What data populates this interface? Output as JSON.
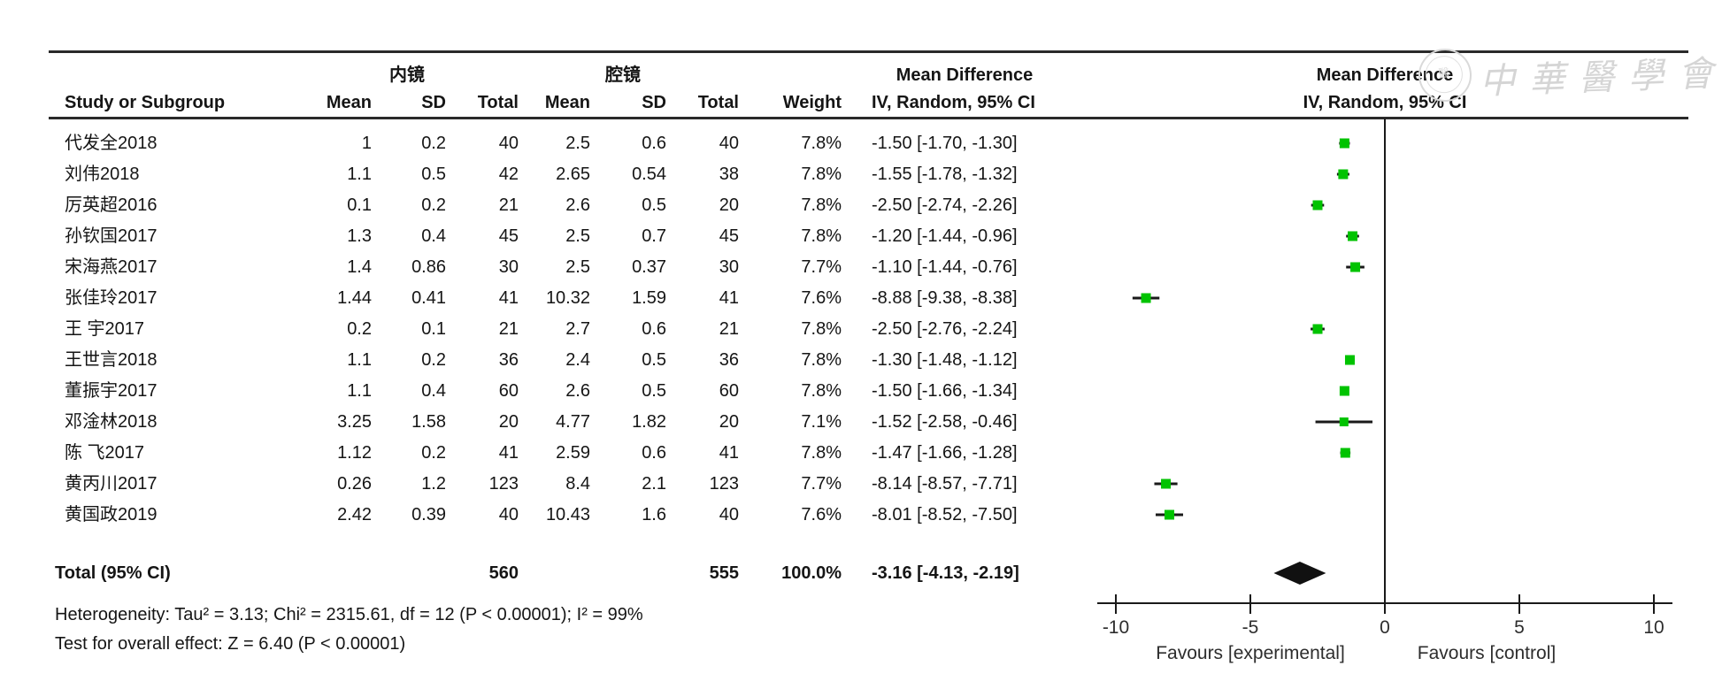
{
  "watermark": {
    "text": "中華醫學會",
    "seal_text": "醫"
  },
  "table": {
    "group1_label": "内镜",
    "group2_label": "腔镜",
    "columns": {
      "study": "Study or Subgroup",
      "mean": "Mean",
      "sd": "SD",
      "total": "Total",
      "weight": "Weight"
    },
    "effect_text_header": {
      "line1": "Mean Difference",
      "line2": "IV, Random, 95% CI"
    },
    "effect_plot_header": {
      "line1": "Mean Difference",
      "line2": "IV, Random, 95% CI"
    },
    "studies": [
      {
        "name": "代发全2018",
        "mean1": "1",
        "sd1": "0.2",
        "total1": "40",
        "mean2": "2.5",
        "sd2": "0.6",
        "total2": "40",
        "weight": "7.8%",
        "ci_text": "-1.50 [-1.70, -1.30]",
        "md": -1.5,
        "lo": -1.7,
        "hi": -1.3,
        "weight_val": 7.8
      },
      {
        "name": "刘伟2018",
        "mean1": "1.1",
        "sd1": "0.5",
        "total1": "42",
        "mean2": "2.65",
        "sd2": "0.54",
        "total2": "38",
        "weight": "7.8%",
        "ci_text": "-1.55 [-1.78, -1.32]",
        "md": -1.55,
        "lo": -1.78,
        "hi": -1.32,
        "weight_val": 7.8
      },
      {
        "name": "厉英超2016",
        "mean1": "0.1",
        "sd1": "0.2",
        "total1": "21",
        "mean2": "2.6",
        "sd2": "0.5",
        "total2": "20",
        "weight": "7.8%",
        "ci_text": "-2.50 [-2.74, -2.26]",
        "md": -2.5,
        "lo": -2.74,
        "hi": -2.26,
        "weight_val": 7.8
      },
      {
        "name": "孙钦国2017",
        "mean1": "1.3",
        "sd1": "0.4",
        "total1": "45",
        "mean2": "2.5",
        "sd2": "0.7",
        "total2": "45",
        "weight": "7.8%",
        "ci_text": "-1.20 [-1.44, -0.96]",
        "md": -1.2,
        "lo": -1.44,
        "hi": -0.96,
        "weight_val": 7.8
      },
      {
        "name": "宋海燕2017",
        "mean1": "1.4",
        "sd1": "0.86",
        "total1": "30",
        "mean2": "2.5",
        "sd2": "0.37",
        "total2": "30",
        "weight": "7.7%",
        "ci_text": "-1.10 [-1.44, -0.76]",
        "md": -1.1,
        "lo": -1.44,
        "hi": -0.76,
        "weight_val": 7.7
      },
      {
        "name": "张佳玲2017",
        "mean1": "1.44",
        "sd1": "0.41",
        "total1": "41",
        "mean2": "10.32",
        "sd2": "1.59",
        "total2": "41",
        "weight": "7.6%",
        "ci_text": "-8.88 [-9.38, -8.38]",
        "md": -8.88,
        "lo": -9.38,
        "hi": -8.38,
        "weight_val": 7.6
      },
      {
        "name": "王 宇2017",
        "mean1": "0.2",
        "sd1": "0.1",
        "total1": "21",
        "mean2": "2.7",
        "sd2": "0.6",
        "total2": "21",
        "weight": "7.8%",
        "ci_text": "-2.50 [-2.76, -2.24]",
        "md": -2.5,
        "lo": -2.76,
        "hi": -2.24,
        "weight_val": 7.8
      },
      {
        "name": "王世言2018",
        "mean1": "1.1",
        "sd1": "0.2",
        "total1": "36",
        "mean2": "2.4",
        "sd2": "0.5",
        "total2": "36",
        "weight": "7.8%",
        "ci_text": "-1.30 [-1.48, -1.12]",
        "md": -1.3,
        "lo": -1.48,
        "hi": -1.12,
        "weight_val": 7.8
      },
      {
        "name": "董振宇2017",
        "mean1": "1.1",
        "sd1": "0.4",
        "total1": "60",
        "mean2": "2.6",
        "sd2": "0.5",
        "total2": "60",
        "weight": "7.8%",
        "ci_text": "-1.50 [-1.66, -1.34]",
        "md": -1.5,
        "lo": -1.66,
        "hi": -1.34,
        "weight_val": 7.8
      },
      {
        "name": "邓淦林2018",
        "mean1": "3.25",
        "sd1": "1.58",
        "total1": "20",
        "mean2": "4.77",
        "sd2": "1.82",
        "total2": "20",
        "weight": "7.1%",
        "ci_text": "-1.52 [-2.58, -0.46]",
        "md": -1.52,
        "lo": -2.58,
        "hi": -0.46,
        "weight_val": 7.1
      },
      {
        "name": "陈 飞2017",
        "mean1": "1.12",
        "sd1": "0.2",
        "total1": "41",
        "mean2": "2.59",
        "sd2": "0.6",
        "total2": "41",
        "weight": "7.8%",
        "ci_text": "-1.47 [-1.66, -1.28]",
        "md": -1.47,
        "lo": -1.66,
        "hi": -1.28,
        "weight_val": 7.8
      },
      {
        "name": "黄丙川2017",
        "mean1": "0.26",
        "sd1": "1.2",
        "total1": "123",
        "mean2": "8.4",
        "sd2": "2.1",
        "total2": "123",
        "weight": "7.7%",
        "ci_text": "-8.14 [-8.57, -7.71]",
        "md": -8.14,
        "lo": -8.57,
        "hi": -7.71,
        "weight_val": 7.7
      },
      {
        "name": "黄国政2019",
        "mean1": "2.42",
        "sd1": "0.39",
        "total1": "40",
        "mean2": "10.43",
        "sd2": "1.6",
        "total2": "40",
        "weight": "7.6%",
        "ci_text": "-8.01 [-8.52, -7.50]",
        "md": -8.01,
        "lo": -8.52,
        "hi": -7.5,
        "weight_val": 7.6
      }
    ],
    "total_row": {
      "label": "Total (95% CI)",
      "total1": "560",
      "total2": "555",
      "weight": "100.0%",
      "ci_text": "-3.16 [-4.13, -2.19]",
      "md": -3.16,
      "lo": -4.13,
      "hi": -2.19
    },
    "heterogeneity": "Heterogeneity: Tau² = 3.13; Chi² = 2315.61, df = 12 (P < 0.00001); I² = 99%",
    "overall_effect": "Test for overall effect: Z = 6.40 (P < 0.00001)"
  },
  "plot": {
    "ticks": [
      "-10",
      "-5",
      "0",
      "5",
      "10"
    ],
    "tick_values": [
      -10,
      -5,
      0,
      5,
      10
    ],
    "xmin": -10,
    "xmax": 10,
    "favours_left": "Favours [experimental]",
    "favours_right": "Favours [control]",
    "marker_color": "#00c300",
    "line_color": "#1a1a1a"
  },
  "chart_data": {
    "type": "scatter",
    "subtype": "forest-plot",
    "title": "Mean Difference",
    "effect_model": "IV, Random, 95% CI",
    "categories": [
      "代发全2018",
      "刘伟2018",
      "厉英超2016",
      "孙钦国2017",
      "宋海燕2017",
      "张佳玲2017",
      "王 宇2017",
      "王世言2018",
      "董振宇2017",
      "邓淦林2018",
      "陈 飞2017",
      "黄丙川2017",
      "黄国政2019"
    ],
    "series": [
      {
        "name": "Mean Difference (内镜 vs 腔镜)",
        "values": [
          -1.5,
          -1.55,
          -2.5,
          -1.2,
          -1.1,
          -8.88,
          -2.5,
          -1.3,
          -1.5,
          -1.52,
          -1.47,
          -8.14,
          -8.01
        ],
        "ci_low": [
          -1.7,
          -1.78,
          -2.74,
          -1.44,
          -1.44,
          -9.38,
          -2.76,
          -1.48,
          -1.66,
          -2.58,
          -1.66,
          -8.57,
          -8.52
        ],
        "ci_high": [
          -1.3,
          -1.32,
          -2.26,
          -0.96,
          -0.76,
          -8.38,
          -2.24,
          -1.12,
          -1.34,
          -0.46,
          -1.28,
          -7.71,
          -7.5
        ],
        "weights_pct": [
          7.8,
          7.8,
          7.8,
          7.8,
          7.7,
          7.6,
          7.8,
          7.8,
          7.8,
          7.1,
          7.8,
          7.7,
          7.6
        ]
      }
    ],
    "summary": {
      "label": "Total (95% CI)",
      "value": -3.16,
      "ci_low": -4.13,
      "ci_high": -2.19
    },
    "xlim": [
      -10,
      10
    ],
    "xticks": [
      -10,
      -5,
      0,
      5,
      10
    ],
    "xlabel": "Favours [experimental]   Favours [control]",
    "grid": false,
    "legend_position": "none"
  }
}
